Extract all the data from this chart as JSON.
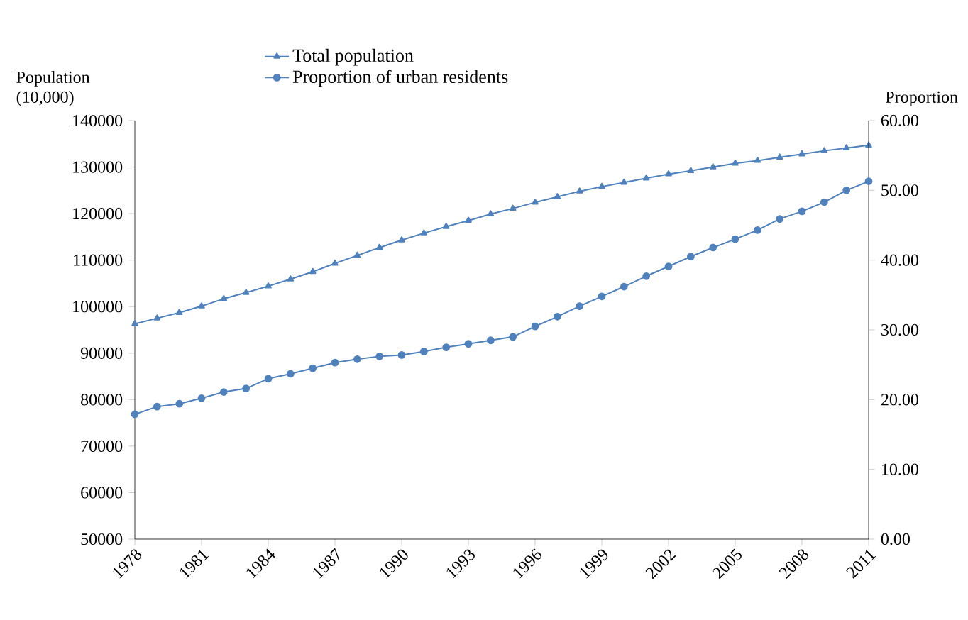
{
  "chart_data": {
    "type": "line",
    "ylabel": "Population (10,000)",
    "y2label": "Proportion",
    "legend": "top",
    "line_style": "solid",
    "x": [
      1978,
      1979,
      1980,
      1981,
      1982,
      1983,
      1984,
      1985,
      1986,
      1987,
      1988,
      1989,
      1990,
      1991,
      1992,
      1993,
      1994,
      1995,
      1996,
      1997,
      1998,
      1999,
      2000,
      2001,
      2002,
      2003,
      2004,
      2005,
      2006,
      2007,
      2008,
      2009,
      2010,
      2011
    ],
    "xlim": [
      1978,
      2011
    ],
    "xticks": [
      1978,
      1981,
      1984,
      1987,
      1990,
      1993,
      1996,
      1999,
      2002,
      2005,
      2008,
      2011
    ],
    "ylim": [
      50000,
      140000
    ],
    "yticks": [
      50000,
      60000,
      70000,
      80000,
      90000,
      100000,
      110000,
      120000,
      130000,
      140000
    ],
    "y2lim": [
      0,
      60
    ],
    "y2ticks": [
      {
        "value": 0,
        "label": "0.00"
      },
      {
        "value": 10,
        "label": "10.00"
      },
      {
        "value": 20,
        "label": "20.00"
      },
      {
        "value": 30,
        "label": "30.00"
      },
      {
        "value": 40,
        "label": "40.00"
      },
      {
        "value": 50,
        "label": "50.00"
      },
      {
        "value": 60,
        "label": "60.00"
      }
    ],
    "series": [
      {
        "name": "Total population",
        "color": "#4f81bd",
        "marker": "triangle",
        "values": [
          96300,
          97500,
          98700,
          100100,
          101700,
          103000,
          104400,
          105900,
          107500,
          109300,
          111000,
          112700,
          114300,
          115800,
          117200,
          118500,
          119900,
          121100,
          122400,
          123600,
          124800,
          125800,
          126700,
          127600,
          128500,
          129200,
          130000,
          130800,
          131400,
          132100,
          132800,
          133500,
          134100,
          134700
        ]
      },
      {
        "name": "Proportion of urban residents",
        "color": "#4f81bd",
        "marker": "circle",
        "axis": "y2",
        "values": [
          17.9,
          19.0,
          19.4,
          20.2,
          21.1,
          21.6,
          23.0,
          23.7,
          24.5,
          25.3,
          25.8,
          26.2,
          26.4,
          26.9,
          27.5,
          28.0,
          28.5,
          29.0,
          30.5,
          31.9,
          33.4,
          34.8,
          36.2,
          37.7,
          39.1,
          40.5,
          41.8,
          43.0,
          44.3,
          45.9,
          47.0,
          48.3,
          50.0,
          51.3
        ]
      }
    ]
  }
}
